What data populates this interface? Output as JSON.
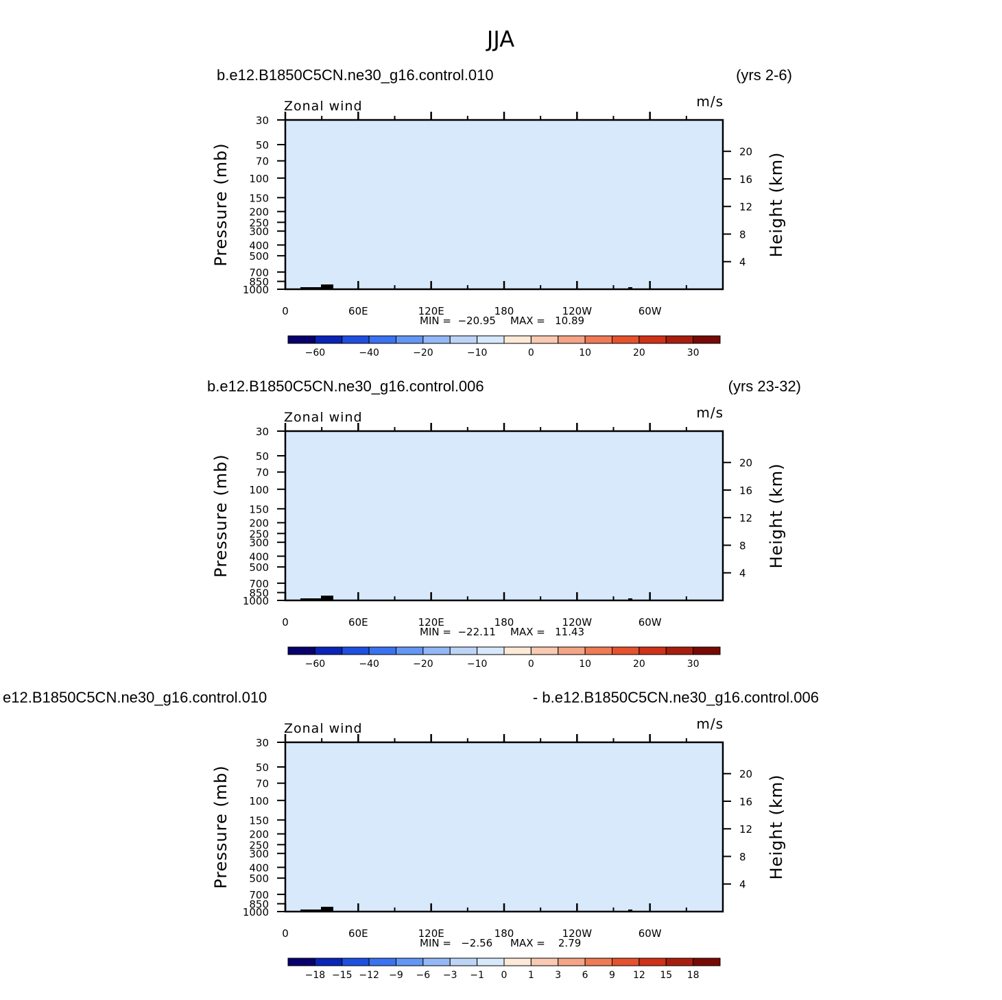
{
  "figure_title": "JJA",
  "colors": {
    "palette": [
      "#08006b",
      "#0a24b8",
      "#1f4fe0",
      "#3b72f0",
      "#6496f4",
      "#94b8f6",
      "#bdd4f7",
      "#d6e8fa",
      "#fde9d8",
      "#f9c9b2",
      "#f4a487",
      "#ee7a56",
      "#e5522e",
      "#cf3218",
      "#a81e0e",
      "#780a06"
    ],
    "neg_light": "#d7e9fb",
    "neg_mid": "#b4cdf6",
    "neg_strong": "#86acf3",
    "neg_deep": "#4b80ef",
    "pos_light": "#fde8d6",
    "pos_mid": "#f6c6ae",
    "pos_strong": "#f1a283",
    "pos_deep": "#ec7350"
  },
  "chart_data": [
    {
      "type": "heatmap",
      "name": "panel-control-010",
      "left_title": "b.e12.B1850C5CN.ne30_g16.control.010",
      "right_title": "(yrs 2-6)",
      "variable": "Zonal wind",
      "units": "m/s",
      "ylabel": "Pressure (mb)",
      "ylabel_right": "Height (km)",
      "x_ticks": [
        "0",
        "60E",
        "120E",
        "180",
        "120W",
        "60W"
      ],
      "y_ticks": [
        "30",
        "50",
        "70",
        "100",
        "150",
        "200",
        "250",
        "300",
        "400",
        "500",
        "700",
        "850",
        "1000"
      ],
      "height_ticks": [
        "20",
        "16",
        "12",
        "8",
        "4"
      ],
      "min_label": "MIN =  −20.95",
      "max_label": "MAX =   10.89",
      "min": -20.95,
      "max": 10.89,
      "colorbar_labels": [
        "−60",
        "−40",
        "−20",
        "−10",
        "0",
        "10",
        "20",
        "30"
      ]
    },
    {
      "type": "heatmap",
      "name": "panel-control-006",
      "left_title": "b.e12.B1850C5CN.ne30_g16.control.006",
      "right_title": "(yrs 23-32)",
      "variable": "Zonal wind",
      "units": "m/s",
      "ylabel": "Pressure (mb)",
      "ylabel_right": "Height (km)",
      "x_ticks": [
        "0",
        "60E",
        "120E",
        "180",
        "120W",
        "60W"
      ],
      "y_ticks": [
        "30",
        "50",
        "70",
        "100",
        "150",
        "200",
        "250",
        "300",
        "400",
        "500",
        "700",
        "850",
        "1000"
      ],
      "height_ticks": [
        "20",
        "16",
        "12",
        "8",
        "4"
      ],
      "min_label": "MIN =  −22.11",
      "max_label": "MAX =   11.43",
      "min": -22.11,
      "max": 11.43,
      "colorbar_labels": [
        "−60",
        "−40",
        "−20",
        "−10",
        "0",
        "10",
        "20",
        "30"
      ]
    },
    {
      "type": "heatmap",
      "name": "panel-difference",
      "left_title": "e12.B1850C5CN.ne30_g16.control.010",
      "right_title": "- b.e12.B1850C5CN.ne30_g16.control.006",
      "variable": "Zonal wind",
      "units": "m/s",
      "ylabel": "Pressure (mb)",
      "ylabel_right": "Height (km)",
      "x_ticks": [
        "0",
        "60E",
        "120E",
        "180",
        "120W",
        "60W"
      ],
      "y_ticks": [
        "30",
        "50",
        "70",
        "100",
        "150",
        "200",
        "250",
        "300",
        "400",
        "500",
        "700",
        "850",
        "1000"
      ],
      "height_ticks": [
        "20",
        "16",
        "12",
        "8",
        "4"
      ],
      "min_label": "MIN =   −2.56",
      "max_label": "MAX =    2.79",
      "min": -2.56,
      "max": 2.79,
      "colorbar_labels": [
        "−18",
        "−15",
        "−12",
        "−9",
        "−6",
        "−3",
        "−1",
        "0",
        "1",
        "3",
        "6",
        "9",
        "12",
        "15",
        "18"
      ]
    }
  ]
}
